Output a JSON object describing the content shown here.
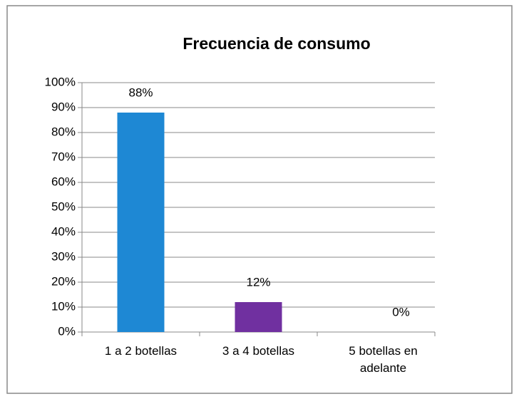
{
  "chart_data": {
    "type": "bar",
    "title": "Frecuencia de consumo",
    "categories": [
      "1 a 2 botellas",
      "3 a 4 botellas",
      "5 botellas en adelante"
    ],
    "values": [
      88,
      12,
      0
    ],
    "value_labels": [
      "88%",
      "12%",
      "0%"
    ],
    "colors": [
      "#1e88d4",
      "#7030a0"
    ],
    "ylim": [
      0,
      100
    ],
    "yticks": [
      {
        "value": 0,
        "label": "0%"
      },
      {
        "value": 10,
        "label": "10%"
      },
      {
        "value": 20,
        "label": "20%"
      },
      {
        "value": 30,
        "label": "30%"
      },
      {
        "value": 40,
        "label": "40%"
      },
      {
        "value": 50,
        "label": "50%"
      },
      {
        "value": 60,
        "label": "60%"
      },
      {
        "value": 70,
        "label": "70%"
      },
      {
        "value": 80,
        "label": "80%"
      },
      {
        "value": 90,
        "label": "90%"
      },
      {
        "value": 100,
        "label": "100%"
      }
    ],
    "grid": true
  }
}
